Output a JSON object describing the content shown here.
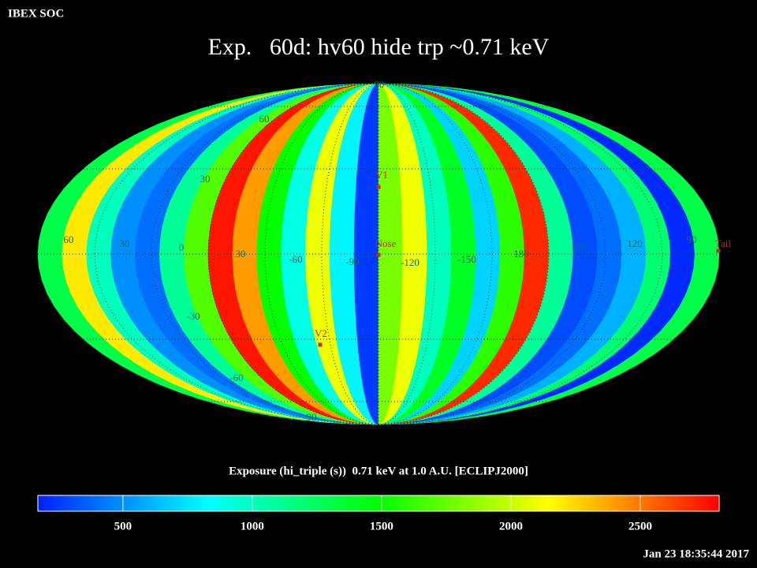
{
  "header": "IBEX SOC",
  "title": "Exp.   60d: hv60 hide trp ~0.71 keV",
  "map": {
    "bands": [
      1300,
      2200,
      1000,
      500,
      400,
      1100,
      1700,
      2750,
      2400,
      1500,
      900,
      2100,
      800,
      250,
      1800,
      2100,
      1000,
      1400,
      700,
      1600,
      2700,
      1100,
      300,
      400,
      600,
      1200,
      200,
      1300
    ],
    "lat_labels": [
      "90",
      "60",
      "30",
      "-30",
      "-60",
      "-90"
    ],
    "lon_labels": [
      "60",
      "30",
      "0",
      "30",
      "-60",
      "-90",
      "-120",
      "-150",
      "180",
      "150",
      "120",
      "90"
    ],
    "markers": [
      "V1",
      "Nose",
      "V2",
      "Tail"
    ]
  },
  "colorbar": {
    "label": "Exposure (hi_triple (s))  0.71 keV at 1.0 A.U. [ECLIPJ2000]",
    "lim": [
      171,
      2805
    ],
    "ticks": [
      500,
      1000,
      1500,
      2000,
      2500
    ],
    "colormap": [
      "#0020ff",
      "#00ffff",
      "#00ff00",
      "#ffff00",
      "#ff0000"
    ]
  },
  "timestamp": "Jan 23 18:35:44 2017"
}
